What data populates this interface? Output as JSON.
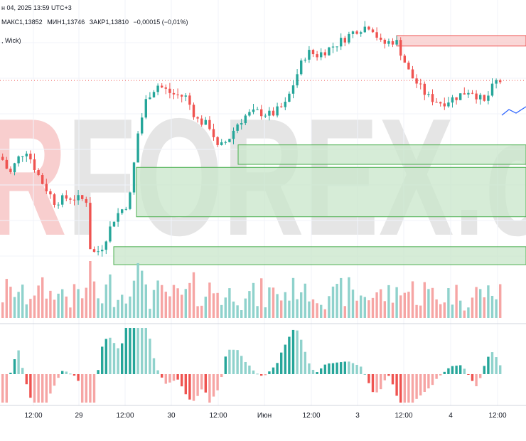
{
  "header": {
    "date_text": "н 04, 2025 13:59 UTC+3",
    "ohlc": {
      "high_label": "МАКС",
      "high_value": "1,13852",
      "low_label": "МИН",
      "low_value": "1,13746",
      "close_label": "ЗАКР",
      "close_value": "1,13810",
      "change": "−0,00015 (−0,01%)"
    },
    "indicator_label": ", Wick)"
  },
  "watermark": {
    "text": "RFOREX.c",
    "color_main": "#cfcfcf",
    "color_accent": "#f2a6a6"
  },
  "colors": {
    "bull": "#26a69a",
    "bear": "#ef5350",
    "bull_volume": "#8fd2cc",
    "bear_volume": "#f6a5a4",
    "demand_zone_fill": "#c8e6c9",
    "demand_zone_line": "#4caf50",
    "supply_zone_fill": "#f8c9c9",
    "supply_zone_line": "#ef5350",
    "forecast_line": "#2962ff",
    "current_price_line": "#ef5350"
  },
  "chart_data": {
    "type": "candlestick",
    "x_tick_labels": [
      "12:00",
      "29",
      "12:00",
      "30",
      "12:00",
      "Июн",
      "12:00",
      "3",
      "12:00",
      "4",
      "12:00"
    ],
    "last_close": 1.1381,
    "zones": [
      {
        "kind": "supply",
        "from": 1.1404,
        "to": 1.1411
      },
      {
        "kind": "demand",
        "from": 1.1325,
        "to": 1.1338
      },
      {
        "kind": "demand",
        "from": 1.129,
        "to": 1.1323
      },
      {
        "kind": "demand",
        "from": 1.1258,
        "to": 1.127
      }
    ],
    "histogram_note": "oscillator histogram below volume",
    "grid": true
  }
}
